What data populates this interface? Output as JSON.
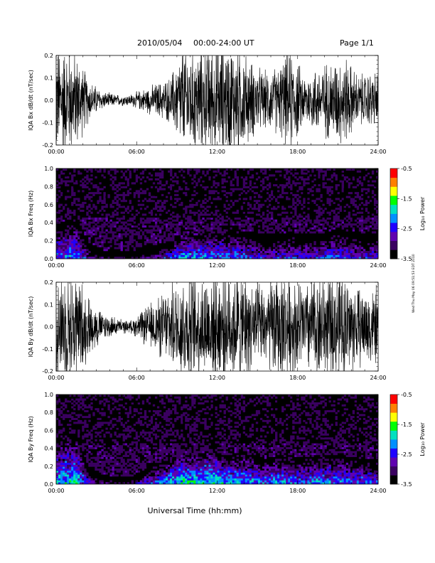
{
  "page": {
    "header_date": "2010/05/04",
    "header_range": "00:00-24:00 UT",
    "page_label": "Page 1/1",
    "xlabel": "Universal Time (hh:mm)",
    "side_note": "Wed Thu May 06 09:51:53 EDT 2010"
  },
  "colors": {
    "background": "#ffffff",
    "trace": "#000000",
    "spectrogram_base": "#000000",
    "colormap": [
      "#000000",
      "#3a0060",
      "#6000b0",
      "#2000ff",
      "#0090ff",
      "#00e0c0",
      "#00ff00",
      "#ffff00",
      "#ff8000",
      "#ff0000"
    ]
  },
  "chart_data": [
    {
      "type": "line",
      "ylabel": "IQA Bx dB/dt (nT/sec)",
      "xlim": [
        "00:00",
        "24:00"
      ],
      "ylim": [
        -0.2,
        0.2
      ],
      "xticks": [
        "00:00",
        "06:00",
        "12:00",
        "18:00",
        "24:00"
      ],
      "yticks": [
        "-0.2",
        "-0.1",
        "0.0",
        "0.1",
        "0.2"
      ],
      "grid": false,
      "envelope_description": "dense oscillating trace; per-hour peak amplitude (nT/sec)",
      "x": [
        0.5,
        1.5,
        2.5,
        3.5,
        4.5,
        5.5,
        6.5,
        7.5,
        8.5,
        9.5,
        10.5,
        11.5,
        12.5,
        13.5,
        14.5,
        15.5,
        16.5,
        17.5,
        18.5,
        19.5,
        20.5,
        21.5,
        22.5,
        23.5
      ],
      "amplitude": [
        0.2,
        0.17,
        0.07,
        0.03,
        0.02,
        0.02,
        0.04,
        0.06,
        0.08,
        0.2,
        0.18,
        0.2,
        0.2,
        0.2,
        0.14,
        0.1,
        0.12,
        0.18,
        0.09,
        0.12,
        0.14,
        0.16,
        0.09,
        0.1
      ]
    },
    {
      "type": "heatmap",
      "ylabel": "IQA Bx Freq (Hz)",
      "xlim": [
        "00:00",
        "24:00"
      ],
      "ylim": [
        0.0,
        1.0
      ],
      "xticks": [
        "00:00",
        "06:00",
        "12:00",
        "18:00",
        "24:00"
      ],
      "yticks": [
        "0.0",
        "0.2",
        "0.4",
        "0.6",
        "0.8",
        "1.0"
      ],
      "colorbar": {
        "label": "Log₁₀ Power",
        "ticks": [
          "-0.5",
          "-1.5",
          "-2.5",
          "-3.5"
        ],
        "range": [
          -3.5,
          -0.5
        ]
      },
      "x_hours": [
        0.5,
        1.5,
        2.5,
        3.5,
        4.5,
        5.5,
        6.5,
        7.5,
        8.5,
        9.5,
        10.5,
        11.5,
        12.5,
        13.5,
        14.5,
        15.5,
        16.5,
        17.5,
        18.5,
        19.5,
        20.5,
        21.5,
        22.5,
        23.5
      ],
      "low_freq_power": [
        -2.3,
        -2.2,
        -2.8,
        -3.1,
        -3.2,
        -3.2,
        -3.0,
        -2.8,
        -2.4,
        -2.0,
        -2.1,
        -2.1,
        -2.2,
        -2.3,
        -2.5,
        -2.6,
        -2.6,
        -2.4,
        -2.6,
        -2.5,
        -2.4,
        -2.4,
        -2.6,
        -2.6
      ],
      "band_top_hz": [
        0.25,
        0.3,
        0.1,
        0.06,
        0.05,
        0.05,
        0.08,
        0.1,
        0.12,
        0.16,
        0.16,
        0.18,
        0.18,
        0.2,
        0.18,
        0.17,
        0.17,
        0.18,
        0.17,
        0.17,
        0.2,
        0.2,
        0.18,
        0.18
      ]
    },
    {
      "type": "line",
      "ylabel": "IQA By dB/dt (nT/sec)",
      "xlim": [
        "00:00",
        "24:00"
      ],
      "ylim": [
        -0.2,
        0.2
      ],
      "xticks": [
        "00:00",
        "06:00",
        "12:00",
        "18:00",
        "24:00"
      ],
      "yticks": [
        "-0.2",
        "-0.1",
        "0.0",
        "0.1",
        "0.2"
      ],
      "grid": false,
      "envelope_description": "dense oscillating trace; per-hour peak amplitude (nT/sec)",
      "x": [
        0.5,
        1.5,
        2.5,
        3.5,
        4.5,
        5.5,
        6.5,
        7.5,
        8.5,
        9.5,
        10.5,
        11.5,
        12.5,
        13.5,
        14.5,
        15.5,
        16.5,
        17.5,
        18.5,
        19.5,
        20.5,
        21.5,
        22.5,
        23.5
      ],
      "amplitude": [
        0.2,
        0.2,
        0.1,
        0.05,
        0.03,
        0.02,
        0.06,
        0.1,
        0.14,
        0.2,
        0.2,
        0.2,
        0.2,
        0.2,
        0.18,
        0.14,
        0.2,
        0.18,
        0.16,
        0.2,
        0.18,
        0.2,
        0.14,
        0.14
      ]
    },
    {
      "type": "heatmap",
      "ylabel": "IQA By Freq (Hz)",
      "xlim": [
        "00:00",
        "24:00"
      ],
      "ylim": [
        0.0,
        1.0
      ],
      "xticks": [
        "00:00",
        "06:00",
        "12:00",
        "18:00",
        "24:00"
      ],
      "yticks": [
        "0.0",
        "0.2",
        "0.4",
        "0.6",
        "0.8",
        "1.0"
      ],
      "colorbar": {
        "label": "Log₁₀ Power",
        "ticks": [
          "-0.5",
          "-1.5",
          "-2.5",
          "-3.5"
        ],
        "range": [
          -3.5,
          -0.5
        ]
      },
      "x_hours": [
        0.5,
        1.5,
        2.5,
        3.5,
        4.5,
        5.5,
        6.5,
        7.5,
        8.5,
        9.5,
        10.5,
        11.5,
        12.5,
        13.5,
        14.5,
        15.5,
        16.5,
        17.5,
        18.5,
        19.5,
        20.5,
        21.5,
        22.5,
        23.5
      ],
      "low_freq_power": [
        -2.0,
        -1.9,
        -2.6,
        -3.0,
        -3.1,
        -3.1,
        -2.6,
        -2.3,
        -2.0,
        -1.8,
        -1.9,
        -1.8,
        -2.0,
        -2.1,
        -2.1,
        -2.3,
        -2.1,
        -2.2,
        -2.3,
        -2.1,
        -2.2,
        -2.2,
        -2.3,
        -2.4
      ],
      "band_top_hz": [
        0.3,
        0.32,
        0.12,
        0.07,
        0.05,
        0.05,
        0.1,
        0.14,
        0.18,
        0.2,
        0.2,
        0.22,
        0.2,
        0.22,
        0.2,
        0.18,
        0.2,
        0.2,
        0.18,
        0.2,
        0.2,
        0.2,
        0.18,
        0.18
      ]
    }
  ]
}
